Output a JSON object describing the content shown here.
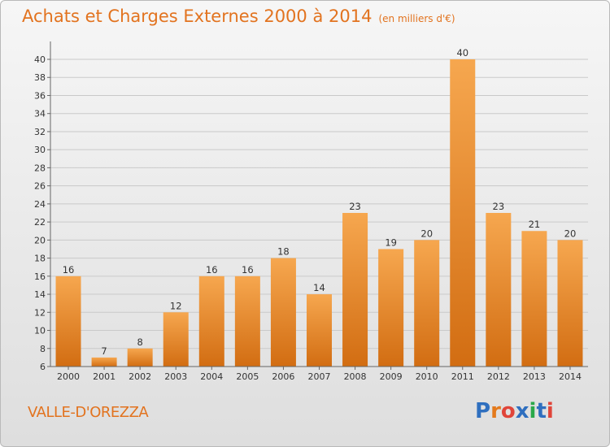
{
  "title": "Achats et Charges Externes 2000 à 2014",
  "subtitle": "(en milliers d'€)",
  "place": "VALLE-D'OREZZA",
  "logo": {
    "text": "Proxiti",
    "colors": [
      "#2f6fbf",
      "#e47a1c",
      "#e0453a",
      "#2f6fbf",
      "#2aa84a",
      "#2f6fbf",
      "#e0453a"
    ]
  },
  "colors": {
    "bar_top": "#f6a74f",
    "bar_bottom": "#d26d12",
    "title": "#e2731f"
  },
  "chart_data": {
    "type": "bar",
    "categories": [
      "2000",
      "2001",
      "2002",
      "2003",
      "2004",
      "2005",
      "2006",
      "2007",
      "2008",
      "2009",
      "2010",
      "2011",
      "2012",
      "2013",
      "2014"
    ],
    "values": [
      16,
      7,
      8,
      12,
      16,
      16,
      18,
      14,
      23,
      19,
      20,
      40,
      23,
      21,
      20
    ],
    "ylim": [
      6,
      41
    ],
    "yticks": [
      6,
      8,
      10,
      12,
      14,
      16,
      18,
      20,
      22,
      24,
      26,
      28,
      30,
      32,
      34,
      36,
      38,
      40
    ],
    "grid": true
  }
}
